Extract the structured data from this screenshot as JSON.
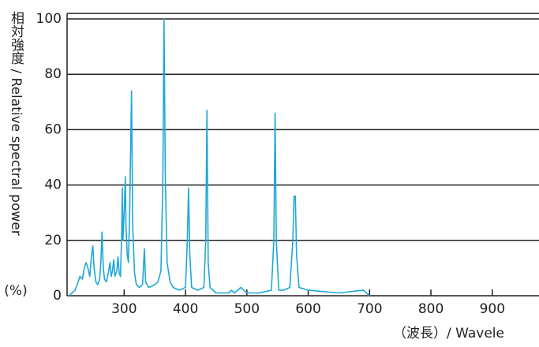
{
  "chart_data": {
    "type": "line",
    "y_label": "相対強度 / Relative spectral power",
    "y_unit": "(%)",
    "x_label": "（波長）/ Wavele",
    "xlim": [
      207,
      962
    ],
    "xticks": [
      300,
      400,
      500,
      600,
      700,
      800,
      900
    ],
    "ylim": [
      0,
      102
    ],
    "yticks": [
      0,
      20,
      40,
      60,
      80,
      100
    ],
    "grid": true,
    "series": [
      {
        "color": "#1fa7d9",
        "x": [
          210,
          215,
          220,
          225,
          228,
          232,
          235,
          238,
          241,
          244,
          247,
          249,
          251,
          254,
          257,
          260,
          262,
          264,
          266,
          268,
          271,
          274,
          277,
          279,
          281,
          283,
          285,
          288,
          290,
          292,
          294,
          296,
          297,
          298,
          300,
          302,
          303,
          305,
          307,
          309,
          312,
          314,
          317,
          320,
          325,
          330,
          333,
          335,
          340,
          350,
          355,
          360,
          363,
          365,
          367,
          370,
          375,
          380,
          390,
          400,
          403,
          405,
          407,
          410,
          420,
          430,
          433,
          435,
          437,
          440,
          450,
          470,
          475,
          480,
          490,
          500,
          520,
          540,
          544,
          546,
          548,
          552,
          560,
          570,
          575,
          577,
          579,
          581,
          585,
          600,
          650,
          690,
          695,
          700
        ],
        "values": [
          0,
          1,
          2,
          5,
          7,
          6,
          10,
          12,
          10,
          7,
          15,
          18,
          10,
          5,
          4,
          6,
          12,
          23,
          10,
          6,
          5,
          8,
          12,
          7,
          9,
          13,
          7,
          9,
          14,
          8,
          7,
          22,
          39,
          20,
          30,
          43,
          25,
          15,
          12,
          30,
          74,
          25,
          8,
          4,
          3,
          4,
          17,
          5,
          3,
          4,
          5,
          9,
          40,
          100,
          45,
          12,
          5,
          3,
          2,
          3,
          20,
          39,
          15,
          3,
          2,
          3,
          20,
          67,
          12,
          3,
          1,
          1,
          2,
          1,
          3,
          1,
          1,
          2,
          20,
          66,
          20,
          2,
          2,
          3,
          20,
          36,
          36,
          15,
          3,
          2,
          1,
          2,
          1,
          0
        ]
      }
    ]
  }
}
